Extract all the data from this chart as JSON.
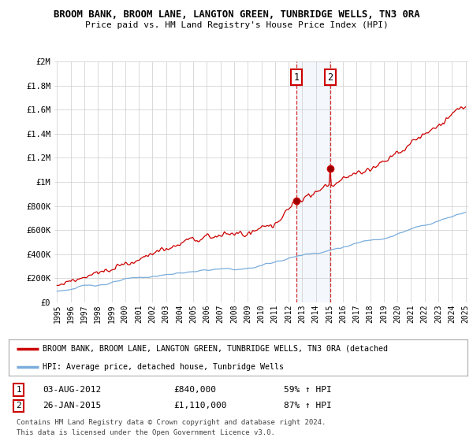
{
  "title1": "BROOM BANK, BROOM LANE, LANGTON GREEN, TUNBRIDGE WELLS, TN3 0RA",
  "title2": "Price paid vs. HM Land Registry's House Price Index (HPI)",
  "ylabel_ticks": [
    "£0",
    "£200K",
    "£400K",
    "£600K",
    "£800K",
    "£1M",
    "£1.2M",
    "£1.4M",
    "£1.6M",
    "£1.8M",
    "£2M"
  ],
  "ytick_values": [
    0,
    200000,
    400000,
    600000,
    800000,
    1000000,
    1200000,
    1400000,
    1600000,
    1800000,
    2000000
  ],
  "year_start": 1995,
  "year_end": 2025,
  "sale1_date": 2012.58,
  "sale1_price": 840000,
  "sale1_label": "03-AUG-2012",
  "sale1_pct": "59% ↑ HPI",
  "sale2_date": 2015.07,
  "sale2_price": 1110000,
  "sale2_label": "26-JAN-2015",
  "sale2_pct": "87% ↑ HPI",
  "red_line_color": "#cc0000",
  "blue_line_color": "#7aaddc",
  "bg_color": "#ffffff",
  "grid_color": "#cccccc",
  "legend_label1": "BROOM BANK, BROOM LANE, LANGTON GREEN, TUNBRIDGE WELLS, TN3 0RA (detached",
  "legend_label2": "HPI: Average price, detached house, Tunbridge Wells",
  "footer1": "Contains HM Land Registry data © Crown copyright and database right 2024.",
  "footer2": "This data is licensed under the Open Government Licence v3.0."
}
